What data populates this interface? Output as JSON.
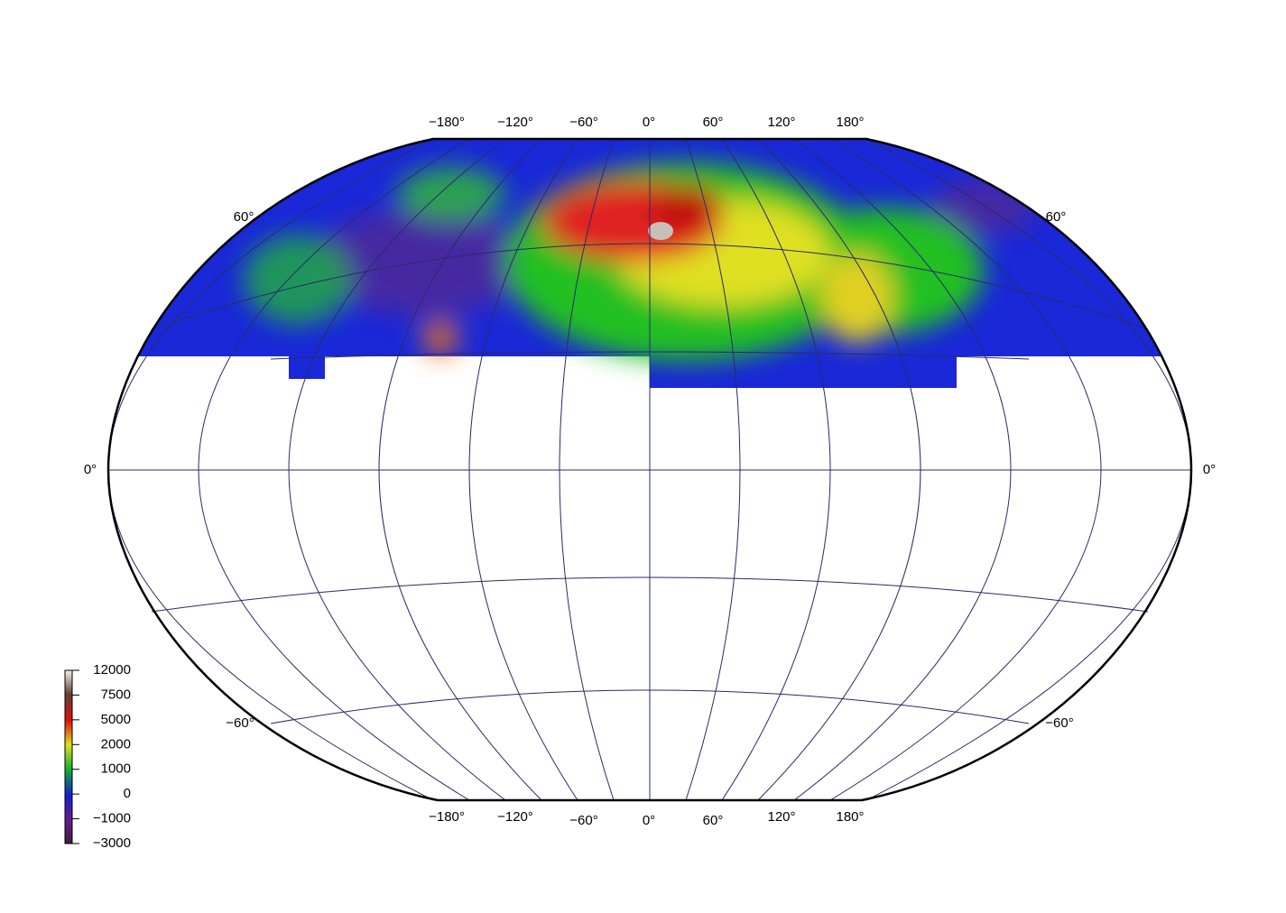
{
  "map": {
    "top_labels": [
      "−180°",
      "−120°",
      "−60°",
      "0°",
      "60°",
      "120°",
      "180°"
    ],
    "bottom_labels": [
      "−180°",
      "−120°",
      "−60°",
      "0°",
      "60°",
      "120°",
      "180°"
    ],
    "left_labels": [
      "60°",
      "0°",
      "−60°"
    ],
    "right_labels": [
      "60°",
      "0°",
      "−60°"
    ],
    "colorbar": {
      "labels": [
        "12000",
        "7500",
        "5000",
        "2000",
        "1000",
        "0",
        "−1000",
        "−3000"
      ]
    }
  }
}
